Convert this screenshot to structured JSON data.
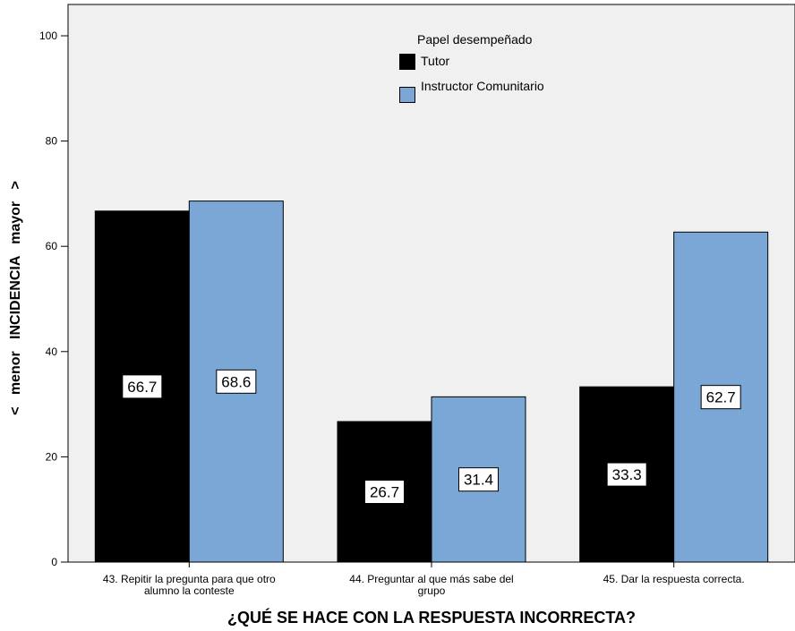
{
  "chart_data": {
    "type": "bar",
    "title": "",
    "xlabel": "¿QUÉ SE HACE CON LA RESPUESTA INCORRECTA?",
    "ylabel": "<   menor   INCIDENCIA   mayor   >",
    "ylim": [
      0,
      100
    ],
    "yticks": [
      "0",
      "20",
      "40",
      "60",
      "80",
      "100"
    ],
    "categories": [
      "43. Repitir la pregunta para que otro alumno la conteste",
      "44. Preguntar al que más sabe del grupo",
      "45. Dar la respuesta correcta."
    ],
    "category_lines": [
      [
        "43. Repitir la pregunta para que otro",
        "alumno la conteste"
      ],
      [
        "44. Preguntar al que más sabe del",
        "grupo"
      ],
      [
        "45. Dar la respuesta correcta."
      ]
    ],
    "series": [
      {
        "name": "Tutor",
        "color": "#000000",
        "values": [
          66.7,
          26.7,
          33.3
        ],
        "labels": [
          "66.7",
          "26.7",
          "33.3"
        ]
      },
      {
        "name": "Instructor Comunitario",
        "color": "#7ba7d6",
        "values": [
          68.6,
          31.4,
          62.7
        ],
        "labels": [
          "68.6",
          "31.4",
          "62.7"
        ]
      }
    ],
    "legend": {
      "title": "Papel desempeñado",
      "position": "top-center"
    },
    "grid": false,
    "plot_background": "#f0f0f0"
  }
}
